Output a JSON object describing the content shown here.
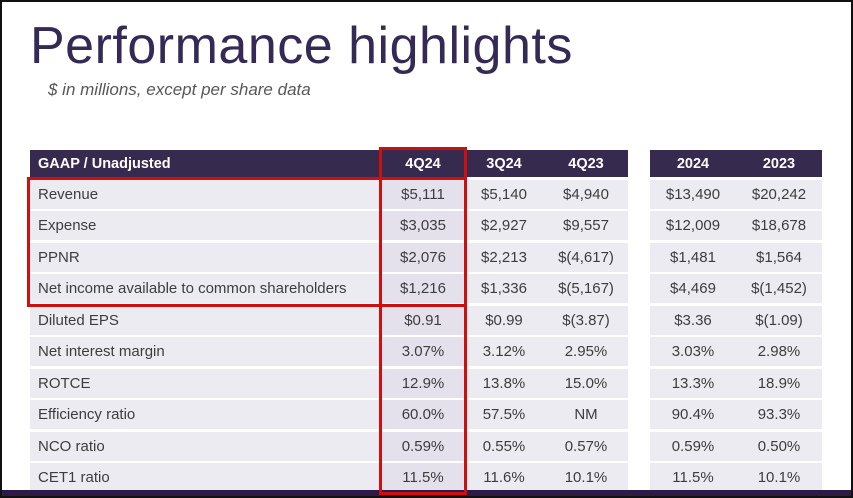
{
  "slide": {
    "title": "Performance highlights",
    "subtitle": "$ in millions, except per share data"
  },
  "table": {
    "header": {
      "label": "GAAP / Unadjusted",
      "columns": [
        "4Q24",
        "3Q24",
        "4Q23",
        "2024",
        "2023"
      ]
    },
    "rows": [
      {
        "label": "Revenue",
        "values": [
          "$5,111",
          "$5,140",
          "$4,940",
          "$13,490",
          "$20,242"
        ]
      },
      {
        "label": "Expense",
        "values": [
          "$3,035",
          "$2,927",
          "$9,557",
          "$12,009",
          "$18,678"
        ]
      },
      {
        "label": "PPNR",
        "values": [
          "$2,076",
          "$2,213",
          "$(4,617)",
          "$1,481",
          "$1,564"
        ]
      },
      {
        "label": "Net income available to common shareholders",
        "values": [
          "$1,216",
          "$1,336",
          "$(5,167)",
          "$4,469",
          "$(1,452)"
        ]
      },
      {
        "label": "Diluted EPS",
        "values": [
          "$0.91",
          "$0.99",
          "$(3.87)",
          "$3.36",
          "$(1.09)"
        ]
      },
      {
        "label": "Net interest margin",
        "values": [
          "3.07%",
          "3.12%",
          "2.95%",
          "3.03%",
          "2.98%"
        ]
      },
      {
        "label": "ROTCE",
        "values": [
          "12.9%",
          "13.8%",
          "15.0%",
          "13.3%",
          "18.9%"
        ]
      },
      {
        "label": "Efficiency ratio",
        "values": [
          "60.0%",
          "57.5%",
          "NM",
          "90.4%",
          "93.3%"
        ]
      },
      {
        "label": "NCO ratio",
        "values": [
          "0.59%",
          "0.55%",
          "0.57%",
          "0.59%",
          "0.50%"
        ]
      },
      {
        "label": "CET1 ratio",
        "values": [
          "11.5%",
          "11.6%",
          "10.1%",
          "11.5%",
          "10.1%"
        ]
      }
    ]
  },
  "highlights": {
    "column_box": "4Q24 column",
    "rows_box": "Revenue through Net income available to common shareholders",
    "border_color": "#cf0f0f"
  },
  "colors": {
    "header_bg": "#372a4f",
    "title_text": "#352a55",
    "row_bg": "#edebf2",
    "highlight_col_bg": "#e4e1ec",
    "footer_bar": "#2e1a47"
  }
}
